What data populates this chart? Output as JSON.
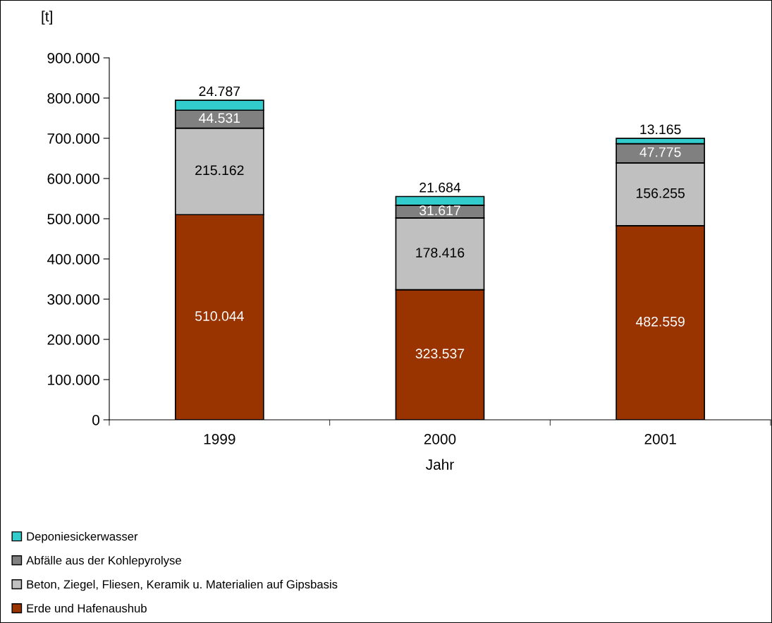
{
  "chart_data": {
    "type": "bar",
    "stacked": true,
    "xlabel": "Jahr",
    "ylabel": "[t]",
    "categories": [
      "1999",
      "2000",
      "2001"
    ],
    "series": [
      {
        "name": "Erde und Hafenaushub",
        "color": "#993300",
        "values": [
          510044,
          323537,
          482559
        ],
        "value_labels": [
          "510.044",
          "323.537",
          "482.559"
        ]
      },
      {
        "name": "Beton, Ziegel, Fliesen, Keramik u. Materialien auf Gipsbasis",
        "color": "#c0c0c0",
        "values": [
          215162,
          178416,
          156255
        ],
        "value_labels": [
          "215.162",
          "178.416",
          "156.255"
        ]
      },
      {
        "name": "Abfälle aus der Kohlepyrolyse",
        "color": "#808080",
        "values": [
          44531,
          31617,
          47775
        ],
        "value_labels": [
          "44.531",
          "31.617",
          "47.775"
        ]
      },
      {
        "name": "Deponiesickerwasser",
        "color": "#33cccc",
        "values": [
          24787,
          21684,
          13165
        ],
        "value_labels": [
          "24.787",
          "21.684",
          "13.165"
        ]
      }
    ],
    "ylim": [
      0,
      900000
    ],
    "yticks": [
      {
        "value": 0,
        "label": "0"
      },
      {
        "value": 100000,
        "label": "100.000"
      },
      {
        "value": 200000,
        "label": "200.000"
      },
      {
        "value": 300000,
        "label": "300.000"
      },
      {
        "value": 400000,
        "label": "400.000"
      },
      {
        "value": 500000,
        "label": "500.000"
      },
      {
        "value": 600000,
        "label": "600.000"
      },
      {
        "value": 700000,
        "label": "700.000"
      },
      {
        "value": 800000,
        "label": "800.000"
      },
      {
        "value": 900000,
        "label": "900.000"
      }
    ],
    "grid": false,
    "legend": "bottom left"
  }
}
